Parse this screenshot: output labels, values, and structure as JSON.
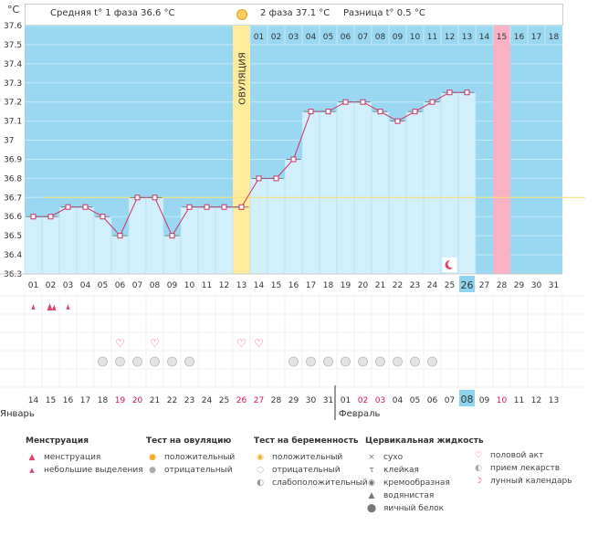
{
  "header": {
    "unit": "°C",
    "phase1_label": "Средняя t° 1 фаза",
    "phase1_value": "36.6 °C",
    "phase2_label": "2 фаза",
    "phase2_value": "37.1 °C",
    "diff_label": "Разница t°",
    "diff_value": "0.5 °C"
  },
  "chart_data": {
    "type": "line",
    "title": "",
    "ylabel": "°C",
    "ylim": [
      36.3,
      37.6
    ],
    "yticks": [
      "36.3",
      "36.4",
      "36.5",
      "36.6",
      "36.7",
      "36.8",
      "36.9",
      "37",
      "37.1",
      "37.2",
      "37.3",
      "37.4",
      "37.5",
      "37.6"
    ],
    "ovulation_label": "ОВУЛЯЦИЯ",
    "coverline": 36.7,
    "cycle_days": [
      "01",
      "02",
      "03",
      "04",
      "05",
      "06",
      "07",
      "08",
      "09",
      "10",
      "11",
      "12",
      "13",
      "14",
      "15",
      "16",
      "17",
      "18",
      "19",
      "20",
      "21",
      "22",
      "23",
      "24",
      "25",
      "26",
      "27",
      "28",
      "29",
      "30",
      "31"
    ],
    "phase2_days": [
      "01",
      "02",
      "03",
      "04",
      "05",
      "06",
      "07",
      "08",
      "09",
      "10",
      "11",
      "12",
      "13",
      "14",
      "15",
      "16",
      "17",
      "18"
    ],
    "temperatures": [
      36.6,
      36.6,
      36.65,
      36.65,
      36.6,
      36.5,
      36.7,
      36.7,
      36.5,
      36.65,
      36.65,
      36.65,
      36.65,
      36.8,
      36.8,
      36.9,
      37.15,
      37.15,
      37.2,
      37.2,
      37.15,
      37.1,
      37.15,
      37.2,
      37.25,
      37.25
    ],
    "ovulation_day": 13,
    "today_day": 26,
    "marked_day": 28,
    "moon_day": 25,
    "dates": [
      "14",
      "15",
      "16",
      "17",
      "18",
      "19",
      "20",
      "21",
      "22",
      "23",
      "24",
      "25",
      "26",
      "27",
      "28",
      "29",
      "30",
      "31",
      "01",
      "02",
      "03",
      "04",
      "05",
      "06",
      "07",
      "08",
      "09",
      "10",
      "11",
      "12",
      "13"
    ],
    "weekend_days": [
      5,
      6,
      12,
      13,
      19,
      20,
      27
    ],
    "months": [
      "Январь",
      "Февраль"
    ],
    "menstruation_days": [
      1,
      2,
      3
    ],
    "menstruation_strong_days": [
      2
    ],
    "intercourse_days": [
      6,
      8,
      13,
      14
    ],
    "medicine_days": [
      5,
      6,
      7,
      8,
      9,
      10,
      16,
      17,
      18,
      19,
      20,
      21,
      22,
      23,
      24
    ]
  },
  "legend": {
    "menstruation": {
      "title": "Менструация",
      "items": [
        "менструация",
        "небольшие выделения"
      ]
    },
    "ovulation_test": {
      "title": "Тест на овуляцию",
      "items": [
        "положительный",
        "отрицательный"
      ]
    },
    "pregnancy_test": {
      "title": "Тест на беременность",
      "items": [
        "положительный",
        "отрицательный",
        "слабоположительный"
      ]
    },
    "cervical": {
      "title": "Цервикальная жидкость",
      "items": [
        "сухо",
        "клейкая",
        "кремообразная",
        "водянистая",
        "яичный белок"
      ]
    },
    "other": {
      "items": [
        "половой акт",
        "прием лекарств",
        "лунный календарь"
      ]
    }
  },
  "colors": {
    "bg_blue": "#9ad8f2",
    "col_fill": "#d2effc",
    "line": "#cc3366",
    "ovulation": "#ffec9a",
    "marked": "#f9b2c4",
    "today": "#8ed3ef",
    "coverline": "#f0e080"
  }
}
